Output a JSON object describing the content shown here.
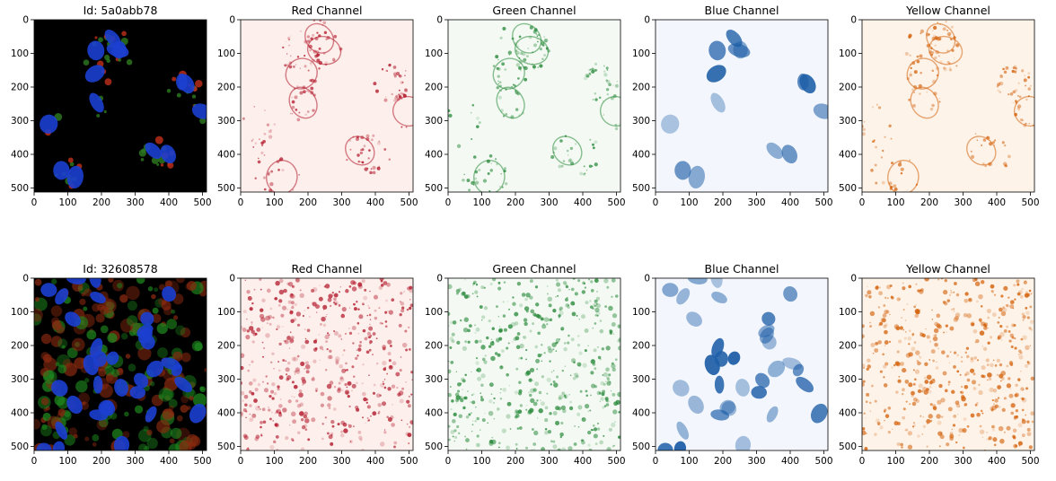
{
  "figure": {
    "rows": [
      {
        "panels": [
          {
            "title": "Id: 5a0abb78",
            "colormap": "composite"
          },
          {
            "title": "Red Channel",
            "colormap": "Reds"
          },
          {
            "title": "Green Channel",
            "colormap": "Greens"
          },
          {
            "title": "Blue Channel",
            "colormap": "Blues"
          },
          {
            "title": "Yellow Channel",
            "colormap": "Oranges"
          }
        ]
      },
      {
        "panels": [
          {
            "title": "Id: 32608578",
            "colormap": "composite"
          },
          {
            "title": "Red Channel",
            "colormap": "Reds"
          },
          {
            "title": "Green Channel",
            "colormap": "Greens"
          },
          {
            "title": "Blue Channel",
            "colormap": "Blues"
          },
          {
            "title": "Yellow Channel",
            "colormap": "Oranges"
          }
        ]
      }
    ],
    "x_ticks": [
      "0",
      "100",
      "200",
      "300",
      "400",
      "500"
    ],
    "y_ticks": [
      "0",
      "100",
      "200",
      "300",
      "400",
      "500"
    ],
    "axis_range": [
      0,
      512
    ],
    "colors": {
      "composite_background": "#000000",
      "reds": "#b2182b",
      "greens": "#2a8a3c",
      "blues": "#1f5fa8",
      "oranges": "#d4620c"
    }
  }
}
